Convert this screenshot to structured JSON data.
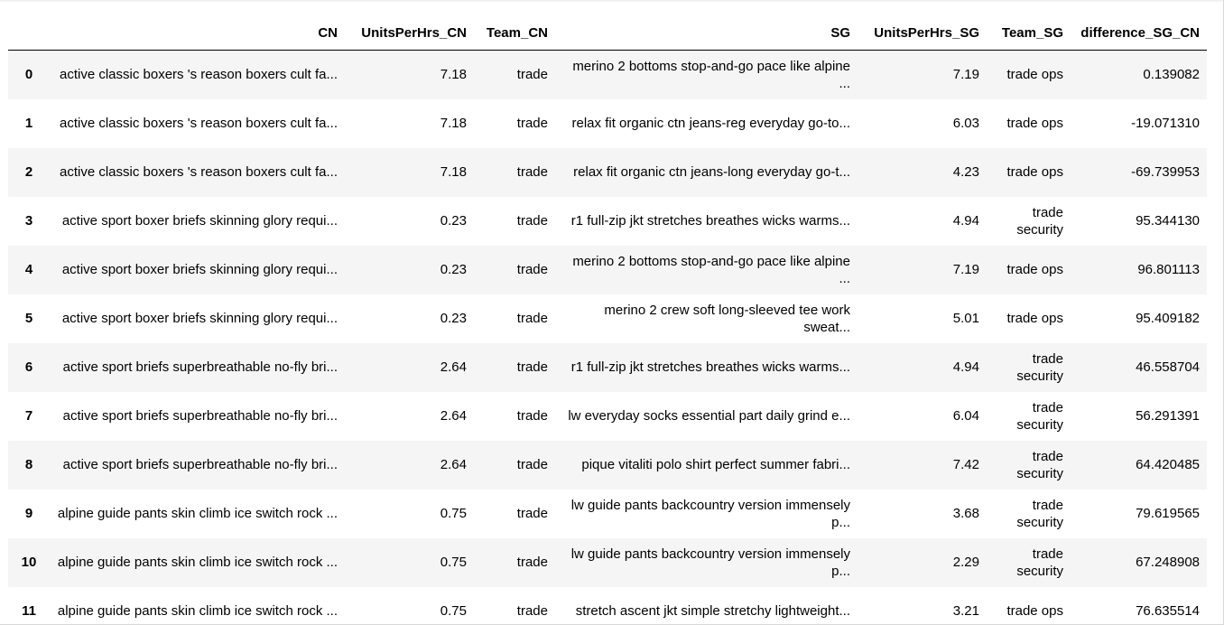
{
  "columns": {
    "index": "",
    "cn": "CN",
    "units_cn": "UnitsPerHrs_CN",
    "team_cn": "Team_CN",
    "sg": "SG",
    "units_sg": "UnitsPerHrs_SG",
    "team_sg": "Team_SG",
    "diff": "difference_SG_CN"
  },
  "rows": [
    {
      "idx": "0",
      "cn": "active classic boxers 's reason boxers cult fa...",
      "units_cn": "7.18",
      "team_cn": "trade",
      "sg": "merino 2 bottoms stop-and-go pace like alpine ...",
      "units_sg": "7.19",
      "team_sg": "trade ops",
      "diff": "0.139082"
    },
    {
      "idx": "1",
      "cn": "active classic boxers 's reason boxers cult fa...",
      "units_cn": "7.18",
      "team_cn": "trade",
      "sg": "relax fit organic ctn jeans-reg everyday go-to...",
      "units_sg": "6.03",
      "team_sg": "trade ops",
      "diff": "-19.071310"
    },
    {
      "idx": "2",
      "cn": "active classic boxers 's reason boxers cult fa...",
      "units_cn": "7.18",
      "team_cn": "trade",
      "sg": "relax fit organic ctn jeans-long everyday go-t...",
      "units_sg": "4.23",
      "team_sg": "trade ops",
      "diff": "-69.739953"
    },
    {
      "idx": "3",
      "cn": "active sport boxer briefs skinning glory requi...",
      "units_cn": "0.23",
      "team_cn": "trade",
      "sg": "r1 full-zip jkt stretches breathes wicks warms...",
      "units_sg": "4.94",
      "team_sg": "trade security",
      "diff": "95.344130"
    },
    {
      "idx": "4",
      "cn": "active sport boxer briefs skinning glory requi...",
      "units_cn": "0.23",
      "team_cn": "trade",
      "sg": "merino 2 bottoms stop-and-go pace like alpine ...",
      "units_sg": "7.19",
      "team_sg": "trade ops",
      "diff": "96.801113"
    },
    {
      "idx": "5",
      "cn": "active sport boxer briefs skinning glory requi...",
      "units_cn": "0.23",
      "team_cn": "trade",
      "sg": "merino 2 crew soft long-sleeved tee work sweat...",
      "units_sg": "5.01",
      "team_sg": "trade ops",
      "diff": "95.409182"
    },
    {
      "idx": "6",
      "cn": "active sport briefs superbreathable no-fly bri...",
      "units_cn": "2.64",
      "team_cn": "trade",
      "sg": "r1 full-zip jkt stretches breathes wicks warms...",
      "units_sg": "4.94",
      "team_sg": "trade security",
      "diff": "46.558704"
    },
    {
      "idx": "7",
      "cn": "active sport briefs superbreathable no-fly bri...",
      "units_cn": "2.64",
      "team_cn": "trade",
      "sg": "lw everyday socks essential part daily grind e...",
      "units_sg": "6.04",
      "team_sg": "trade security",
      "diff": "56.291391"
    },
    {
      "idx": "8",
      "cn": "active sport briefs superbreathable no-fly bri...",
      "units_cn": "2.64",
      "team_cn": "trade",
      "sg": "pique vitaliti polo shirt perfect summer fabri...",
      "units_sg": "7.42",
      "team_sg": "trade security",
      "diff": "64.420485"
    },
    {
      "idx": "9",
      "cn": "alpine guide pants skin climb ice switch rock ...",
      "units_cn": "0.75",
      "team_cn": "trade",
      "sg": "lw guide pants backcountry version immensely p...",
      "units_sg": "3.68",
      "team_sg": "trade security",
      "diff": "79.619565"
    },
    {
      "idx": "10",
      "cn": "alpine guide pants skin climb ice switch rock ...",
      "units_cn": "0.75",
      "team_cn": "trade",
      "sg": "lw guide pants backcountry version immensely p...",
      "units_sg": "2.29",
      "team_sg": "trade security",
      "diff": "67.248908"
    },
    {
      "idx": "11",
      "cn": "alpine guide pants skin climb ice switch rock ...",
      "units_cn": "0.75",
      "team_cn": "trade",
      "sg": "stretch ascent jkt simple stretchy lightweight...",
      "units_sg": "3.21",
      "team_sg": "trade ops",
      "diff": "76.635514"
    }
  ]
}
